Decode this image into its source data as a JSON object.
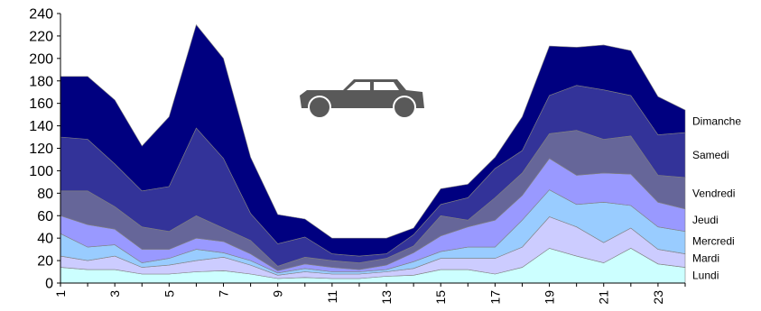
{
  "chart_data": {
    "type": "area",
    "stacked": true,
    "x": [
      1,
      2,
      3,
      4,
      5,
      6,
      7,
      8,
      9,
      10,
      11,
      12,
      13,
      14,
      15,
      16,
      17,
      18,
      19,
      20,
      21,
      22,
      23,
      24
    ],
    "x_tick_labels": [
      "1",
      "3",
      "5",
      "7",
      "9",
      "11",
      "13",
      "15",
      "17",
      "19",
      "21",
      "23"
    ],
    "y_tick_labels": [
      "0",
      "20",
      "40",
      "60",
      "80",
      "100",
      "120",
      "140",
      "160",
      "180",
      "200",
      "220",
      "240"
    ],
    "ylim": [
      0,
      240
    ],
    "grid": false,
    "legend_position": "right",
    "series": [
      {
        "name": "Lundi",
        "color": "#ccffff",
        "values": [
          14,
          12,
          12,
          8,
          8,
          10,
          11,
          8,
          4,
          5,
          4,
          4,
          6,
          7,
          12,
          12,
          8,
          14,
          31,
          24,
          18,
          31,
          17,
          14
        ]
      },
      {
        "name": "Mardi",
        "color": "#ccccff",
        "values": [
          10,
          8,
          12,
          6,
          8,
          10,
          12,
          8,
          3,
          5,
          4,
          4,
          4,
          6,
          10,
          10,
          14,
          18,
          28,
          26,
          18,
          18,
          13,
          12
        ]
      },
      {
        "name": "Mercredi",
        "color": "#99ccff",
        "values": [
          20,
          12,
          10,
          4,
          6,
          10,
          4,
          4,
          2,
          3,
          2,
          2,
          2,
          6,
          6,
          10,
          10,
          24,
          24,
          20,
          36,
          20,
          20,
          20
        ]
      },
      {
        "name": "Jeudi",
        "color": "#9999ff",
        "values": [
          16,
          20,
          14,
          12,
          8,
          10,
          10,
          6,
          2,
          4,
          4,
          2,
          4,
          8,
          14,
          18,
          24,
          22,
          28,
          26,
          26,
          28,
          22,
          20
        ]
      },
      {
        "name": "Vendredi",
        "color": "#666699",
        "values": [
          22,
          30,
          20,
          20,
          16,
          20,
          12,
          12,
          4,
          6,
          6,
          6,
          6,
          6,
          18,
          6,
          20,
          20,
          22,
          40,
          30,
          34,
          24,
          28
        ]
      },
      {
        "name": "Samedi",
        "color": "#333399",
        "values": [
          48,
          46,
          38,
          32,
          40,
          78,
          62,
          24,
          20,
          18,
          6,
          6,
          4,
          10,
          10,
          20,
          26,
          20,
          34,
          40,
          44,
          36,
          36,
          40
        ]
      },
      {
        "name": "Dimanche",
        "color": "#000080",
        "values": [
          54,
          56,
          57,
          40,
          62,
          92,
          89,
          50,
          26,
          16,
          14,
          16,
          14,
          6,
          14,
          12,
          10,
          30,
          44,
          34,
          40,
          40,
          34,
          20
        ]
      }
    ],
    "icon": "car-icon",
    "icon_color": "#595959"
  }
}
